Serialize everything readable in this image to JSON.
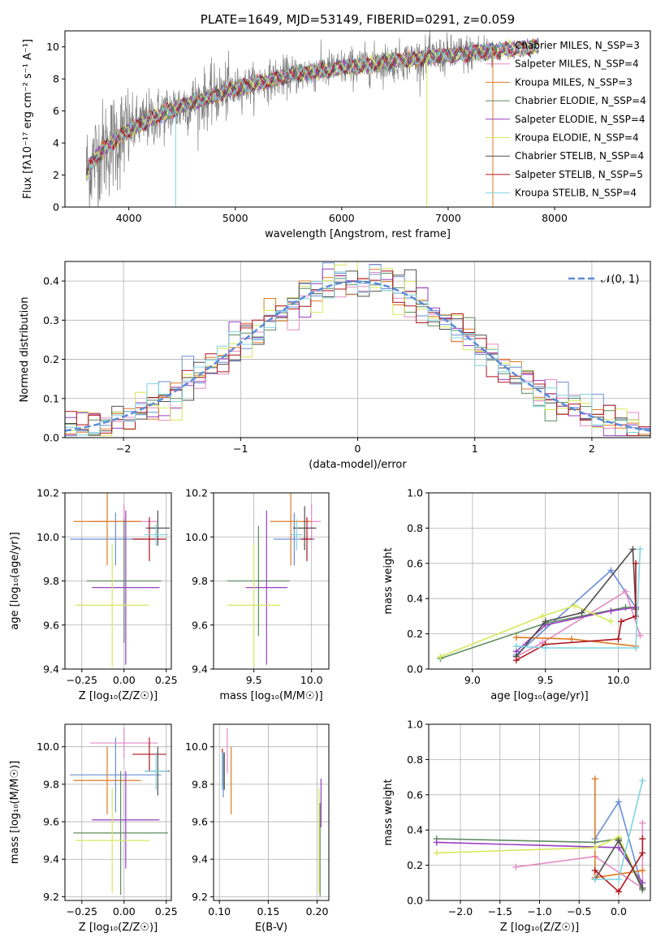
{
  "chart_data": [
    {
      "id": "spectrum",
      "type": "line",
      "title": "PLATE=1649, MJD=53149, FIBERID=0291, z=0.059",
      "xlabel": "wavelength [Angstrom, rest frame]",
      "ylabel": "Flux [fλ10⁻¹⁷ erg cm⁻² s⁻¹ A⁻¹]",
      "xlim": [
        3400,
        8900
      ],
      "ylim": [
        0,
        11
      ],
      "xticks": [
        4000,
        5000,
        6000,
        7000,
        8000
      ],
      "yticks": [
        0,
        2,
        4,
        6,
        8,
        10
      ],
      "grid": false,
      "legend_position": "right",
      "observed_range": [
        3600,
        7420
      ],
      "model_range": [
        3600,
        7850
      ],
      "continuum_points": [
        [
          3600,
          2.2
        ],
        [
          3700,
          3.2
        ],
        [
          3800,
          3.8
        ],
        [
          3900,
          4.3
        ],
        [
          4000,
          4.8
        ],
        [
          4200,
          5.5
        ],
        [
          4500,
          6.3
        ],
        [
          5000,
          7.4
        ],
        [
          5500,
          8.2
        ],
        [
          6000,
          8.7
        ],
        [
          6500,
          9.1
        ],
        [
          7000,
          9.5
        ],
        [
          7500,
          9.8
        ],
        [
          7850,
          10.0
        ]
      ],
      "series": [
        {
          "name": "Chabrier MILES, N_SSP=3",
          "color": "#6a8fd6"
        },
        {
          "name": "Salpeter MILES, N_SSP=4",
          "color": "#e58ac4"
        },
        {
          "name": "Kroupa MILES, N_SSP=3",
          "color": "#e07b24"
        },
        {
          "name": "Chabrier ELODIE, N_SSP=4",
          "color": "#5e8b5e"
        },
        {
          "name": "Salpeter ELODIE, N_SSP=4",
          "color": "#9a3fc0"
        },
        {
          "name": "Kroupa ELODIE, N_SSP=4",
          "color": "#d7e85c"
        },
        {
          "name": "Chabrier STELIB, N_SSP=4",
          "color": "#4f4f4f"
        },
        {
          "name": "Salpeter STELIB, N_SSP=5",
          "color": "#b0151e"
        },
        {
          "name": "Kroupa STELIB, N_SSP=4",
          "color": "#7fd3df"
        }
      ]
    },
    {
      "id": "residuals",
      "type": "line",
      "xlabel": "(data-model)/error",
      "ylabel": "Normed distribution",
      "xlim": [
        -2.5,
        2.5
      ],
      "ylim": [
        0,
        0.45
      ],
      "xticks": [
        -2,
        -1,
        0,
        1,
        2
      ],
      "yticks": [
        0.0,
        0.1,
        0.2,
        0.3,
        0.4
      ],
      "grid": true,
      "legend_position": "top-right",
      "bin_width": 0.1,
      "reference": {
        "name": "𝒩(0, 1)",
        "color": "#5b8bd8"
      }
    },
    {
      "id": "age-vs-z",
      "type": "scatter",
      "xlabel": "Z [log₁₀(Z/Z☉)]",
      "ylabel": "age  [log₁₀(age/yr)]",
      "xlim": [
        -0.35,
        0.28
      ],
      "ylim": [
        9.4,
        10.2
      ],
      "xticks": [
        -0.25,
        0.0,
        0.25
      ],
      "yticks": [
        9.4,
        9.6,
        9.8,
        10.0,
        10.2
      ],
      "grid": true,
      "points": [
        {
          "color": "#6a8fd6",
          "x": -0.05,
          "y": 9.99,
          "xerr": 0.27,
          "yerr": 0.12
        },
        {
          "color": "#e58ac4",
          "x": 0.0,
          "y": 10.07,
          "xerr": 0.2,
          "yerr": 0.08
        },
        {
          "color": "#e07b24",
          "x": -0.1,
          "y": 10.07,
          "xerr": 0.2,
          "yerr": 0.2
        },
        {
          "color": "#5e8b5e",
          "x": 0.0,
          "y": 9.8,
          "xerr": 0.22,
          "yerr": 0.28
        },
        {
          "color": "#9a3fc0",
          "x": 0.01,
          "y": 9.77,
          "xerr": 0.2,
          "yerr": 0.35
        },
        {
          "color": "#d7e85c",
          "x": -0.07,
          "y": 9.69,
          "xerr": 0.22,
          "yerr": 0.28
        },
        {
          "color": "#4f4f4f",
          "x": 0.2,
          "y": 10.04,
          "xerr": 0.07,
          "yerr": 0.08
        },
        {
          "color": "#b0151e",
          "x": 0.15,
          "y": 9.99,
          "xerr": 0.1,
          "yerr": 0.1
        },
        {
          "color": "#7fd3df",
          "x": 0.19,
          "y": 10.01,
          "xerr": 0.07,
          "yerr": 0.05
        }
      ]
    },
    {
      "id": "age-vs-mass",
      "type": "scatter",
      "xlabel": "mass [log₁₀(M/M☉)]",
      "ylabel": "",
      "xlim": [
        9.15,
        10.15
      ],
      "ylim": [
        9.4,
        10.2
      ],
      "xticks": [
        9.5,
        10.0
      ],
      "yticks": [
        9.4,
        9.6,
        9.8,
        10.0,
        10.2
      ],
      "grid": true,
      "points": [
        {
          "color": "#6a8fd6",
          "x": 9.85,
          "y": 9.99,
          "xerr": 0.18,
          "yerr": 0.12
        },
        {
          "color": "#e58ac4",
          "x": 10.0,
          "y": 10.07,
          "xerr": 0.08,
          "yerr": 0.08
        },
        {
          "color": "#e07b24",
          "x": 9.82,
          "y": 10.07,
          "xerr": 0.18,
          "yerr": 0.2
        },
        {
          "color": "#5e8b5e",
          "x": 9.54,
          "y": 9.8,
          "xerr": 0.27,
          "yerr": 0.25
        },
        {
          "color": "#9a3fc0",
          "x": 9.61,
          "y": 9.77,
          "xerr": 0.18,
          "yerr": 0.35
        },
        {
          "color": "#d7e85c",
          "x": 9.5,
          "y": 9.69,
          "xerr": 0.23,
          "yerr": 0.28
        },
        {
          "color": "#4f4f4f",
          "x": 9.94,
          "y": 10.04,
          "xerr": 0.1,
          "yerr": 0.1
        },
        {
          "color": "#b0151e",
          "x": 9.96,
          "y": 9.99,
          "xerr": 0.05,
          "yerr": 0.1
        },
        {
          "color": "#7fd3df",
          "x": 9.87,
          "y": 10.01,
          "xerr": 0.05,
          "yerr": 0.07
        }
      ]
    },
    {
      "id": "weight-vs-age",
      "type": "line",
      "xlabel": "age  [log₁₀(age/yr)]",
      "ylabel": "mass weight",
      "xlim": [
        8.7,
        10.22
      ],
      "ylim": [
        0,
        1.0
      ],
      "xticks": [
        9.0,
        9.5,
        10.0
      ],
      "yticks": [
        0.0,
        0.2,
        0.4,
        0.6,
        0.8,
        1.0
      ],
      "grid": true,
      "series": [
        {
          "color": "#6a8fd6",
          "x": [
            9.3,
            9.95,
            10.12
          ],
          "y": [
            0.08,
            0.56,
            0.35
          ]
        },
        {
          "color": "#e58ac4",
          "x": [
            9.3,
            9.48,
            10.05,
            10.15
          ],
          "y": [
            0.07,
            0.15,
            0.44,
            0.19
          ]
        },
        {
          "color": "#e07b24",
          "x": [
            9.3,
            9.68,
            10.12
          ],
          "y": [
            0.18,
            0.17,
            0.13
          ]
        },
        {
          "color": "#5e8b5e",
          "x": [
            8.78,
            9.5,
            10.05,
            10.12
          ],
          "y": [
            0.06,
            0.26,
            0.35,
            0.35
          ]
        },
        {
          "color": "#9a3fc0",
          "x": [
            9.3,
            9.5,
            9.95,
            10.12
          ],
          "y": [
            0.1,
            0.25,
            0.33,
            0.35
          ]
        },
        {
          "color": "#d7e85c",
          "x": [
            8.78,
            9.48,
            9.7,
            9.95
          ],
          "y": [
            0.07,
            0.3,
            0.36,
            0.27
          ]
        },
        {
          "color": "#4f4f4f",
          "x": [
            9.3,
            9.5,
            9.75,
            10.1,
            10.12
          ],
          "y": [
            0.07,
            0.27,
            0.32,
            0.68,
            0.34
          ]
        },
        {
          "color": "#b0151e",
          "x": [
            9.3,
            9.5,
            10.0,
            10.02,
            10.12,
            10.12
          ],
          "y": [
            0.05,
            0.14,
            0.17,
            0.27,
            0.3,
            0.6
          ]
        },
        {
          "color": "#7fd3df",
          "x": [
            9.3,
            9.5,
            10.12,
            10.15
          ],
          "y": [
            0.13,
            0.12,
            0.12,
            0.68
          ]
        }
      ]
    },
    {
      "id": "mass-vs-z",
      "type": "scatter",
      "xlabel": "Z [log₁₀(Z/Z☉)]",
      "ylabel": "mass [log₁₀(M/M☉)]",
      "xlim": [
        -0.35,
        0.28
      ],
      "ylim": [
        9.18,
        10.12
      ],
      "xticks": [
        -0.25,
        0.0,
        0.25
      ],
      "yticks": [
        9.2,
        9.4,
        9.6,
        9.8,
        10.0
      ],
      "grid": true,
      "points": [
        {
          "color": "#6a8fd6",
          "x": -0.05,
          "y": 9.85,
          "xerr": 0.27,
          "yerr": 0.2
        },
        {
          "color": "#e58ac4",
          "x": 0.0,
          "y": 10.02,
          "xerr": 0.2,
          "yerr": 0.08
        },
        {
          "color": "#e07b24",
          "x": -0.1,
          "y": 9.82,
          "xerr": 0.2,
          "yerr": 0.18
        },
        {
          "color": "#5e8b5e",
          "x": -0.02,
          "y": 9.54,
          "xerr": 0.28,
          "yerr": 0.33
        },
        {
          "color": "#9a3fc0",
          "x": 0.01,
          "y": 9.61,
          "xerr": 0.2,
          "yerr": 0.26
        },
        {
          "color": "#d7e85c",
          "x": -0.07,
          "y": 9.5,
          "xerr": 0.22,
          "yerr": 0.28
        },
        {
          "color": "#4f4f4f",
          "x": 0.2,
          "y": 9.87,
          "xerr": 0.07,
          "yerr": 0.13
        },
        {
          "color": "#b0151e",
          "x": 0.15,
          "y": 9.96,
          "xerr": 0.1,
          "yerr": 0.09
        },
        {
          "color": "#7fd3df",
          "x": 0.19,
          "y": 9.87,
          "xerr": 0.07,
          "yerr": 0.1
        }
      ]
    },
    {
      "id": "mass-vs-ebv",
      "type": "scatter",
      "xlabel": "E(B-V)",
      "ylabel": "",
      "xlim": [
        0.094,
        0.212
      ],
      "ylim": [
        9.18,
        10.12
      ],
      "xticks": [
        0.1,
        0.15,
        0.2
      ],
      "yticks": [
        9.2,
        9.4,
        9.6,
        9.8,
        10.0
      ],
      "grid": true,
      "points": [
        {
          "color": "#6a8fd6",
          "x": 0.104,
          "y": 9.85,
          "xerr": 0.0,
          "yerr": 0.12
        },
        {
          "color": "#e58ac4",
          "x": 0.108,
          "y": 9.98,
          "xerr": 0.0,
          "yerr": 0.12
        },
        {
          "color": "#e07b24",
          "x": 0.112,
          "y": 9.82,
          "xerr": 0.0,
          "yerr": 0.18
        },
        {
          "color": "#5e8b5e",
          "x": 0.203,
          "y": 9.45,
          "xerr": 0.0,
          "yerr": 0.25
        },
        {
          "color": "#9a3fc0",
          "x": 0.204,
          "y": 9.7,
          "xerr": 0.0,
          "yerr": 0.13
        },
        {
          "color": "#d7e85c",
          "x": 0.202,
          "y": 9.5,
          "xerr": 0.0,
          "yerr": 0.28
        },
        {
          "color": "#4f4f4f",
          "x": 0.105,
          "y": 9.87,
          "xerr": 0.0,
          "yerr": 0.1
        },
        {
          "color": "#b0151e",
          "x": 0.103,
          "y": 9.89,
          "xerr": 0.0,
          "yerr": 0.1
        },
        {
          "color": "#7fd3df",
          "x": 0.103,
          "y": 9.87,
          "xerr": 0.0,
          "yerr": 0.1
        }
      ]
    },
    {
      "id": "weight-vs-z",
      "type": "line",
      "xlabel": "Z [log₁₀(Z/Z☉)]",
      "ylabel": "mass weight",
      "xlim": [
        -2.4,
        0.4
      ],
      "ylim": [
        0,
        1.0
      ],
      "xticks": [
        -2.0,
        -1.5,
        -1.0,
        -0.5,
        0.0
      ],
      "yticks": [
        0.0,
        0.2,
        0.4,
        0.6,
        0.8,
        1.0
      ],
      "grid": true,
      "series": [
        {
          "color": "#6a8fd6",
          "x": [
            -0.3,
            0.0,
            0.3
          ],
          "y": [
            0.35,
            0.56,
            0.07
          ]
        },
        {
          "color": "#e58ac4",
          "x": [
            -1.3,
            -0.3,
            0.3,
            0.3
          ],
          "y": [
            0.19,
            0.25,
            0.07,
            0.44
          ]
        },
        {
          "color": "#e07b24",
          "x": [
            -0.3,
            -0.3,
            0.3
          ],
          "y": [
            0.69,
            0.13,
            0.17
          ]
        },
        {
          "color": "#5e8b5e",
          "x": [
            -2.3,
            -0.3,
            0.0,
            0.3
          ],
          "y": [
            0.35,
            0.33,
            0.35,
            0.06
          ]
        },
        {
          "color": "#9a3fc0",
          "x": [
            -2.3,
            0.0,
            0.3
          ],
          "y": [
            0.33,
            0.3,
            0.1
          ]
        },
        {
          "color": "#d7e85c",
          "x": [
            -2.3,
            -0.3,
            0.0,
            0.3
          ],
          "y": [
            0.27,
            0.3,
            0.36,
            0.07
          ]
        },
        {
          "color": "#4f4f4f",
          "x": [
            -0.3,
            0.0,
            0.3
          ],
          "y": [
            0.12,
            0.34,
            0.07
          ]
        },
        {
          "color": "#b0151e",
          "x": [
            -0.3,
            0.0,
            0.3,
            0.3
          ],
          "y": [
            0.17,
            0.05,
            0.27,
            0.35
          ]
        },
        {
          "color": "#7fd3df",
          "x": [
            -0.3,
            0.0,
            0.3
          ],
          "y": [
            0.12,
            0.12,
            0.68
          ]
        }
      ]
    }
  ]
}
